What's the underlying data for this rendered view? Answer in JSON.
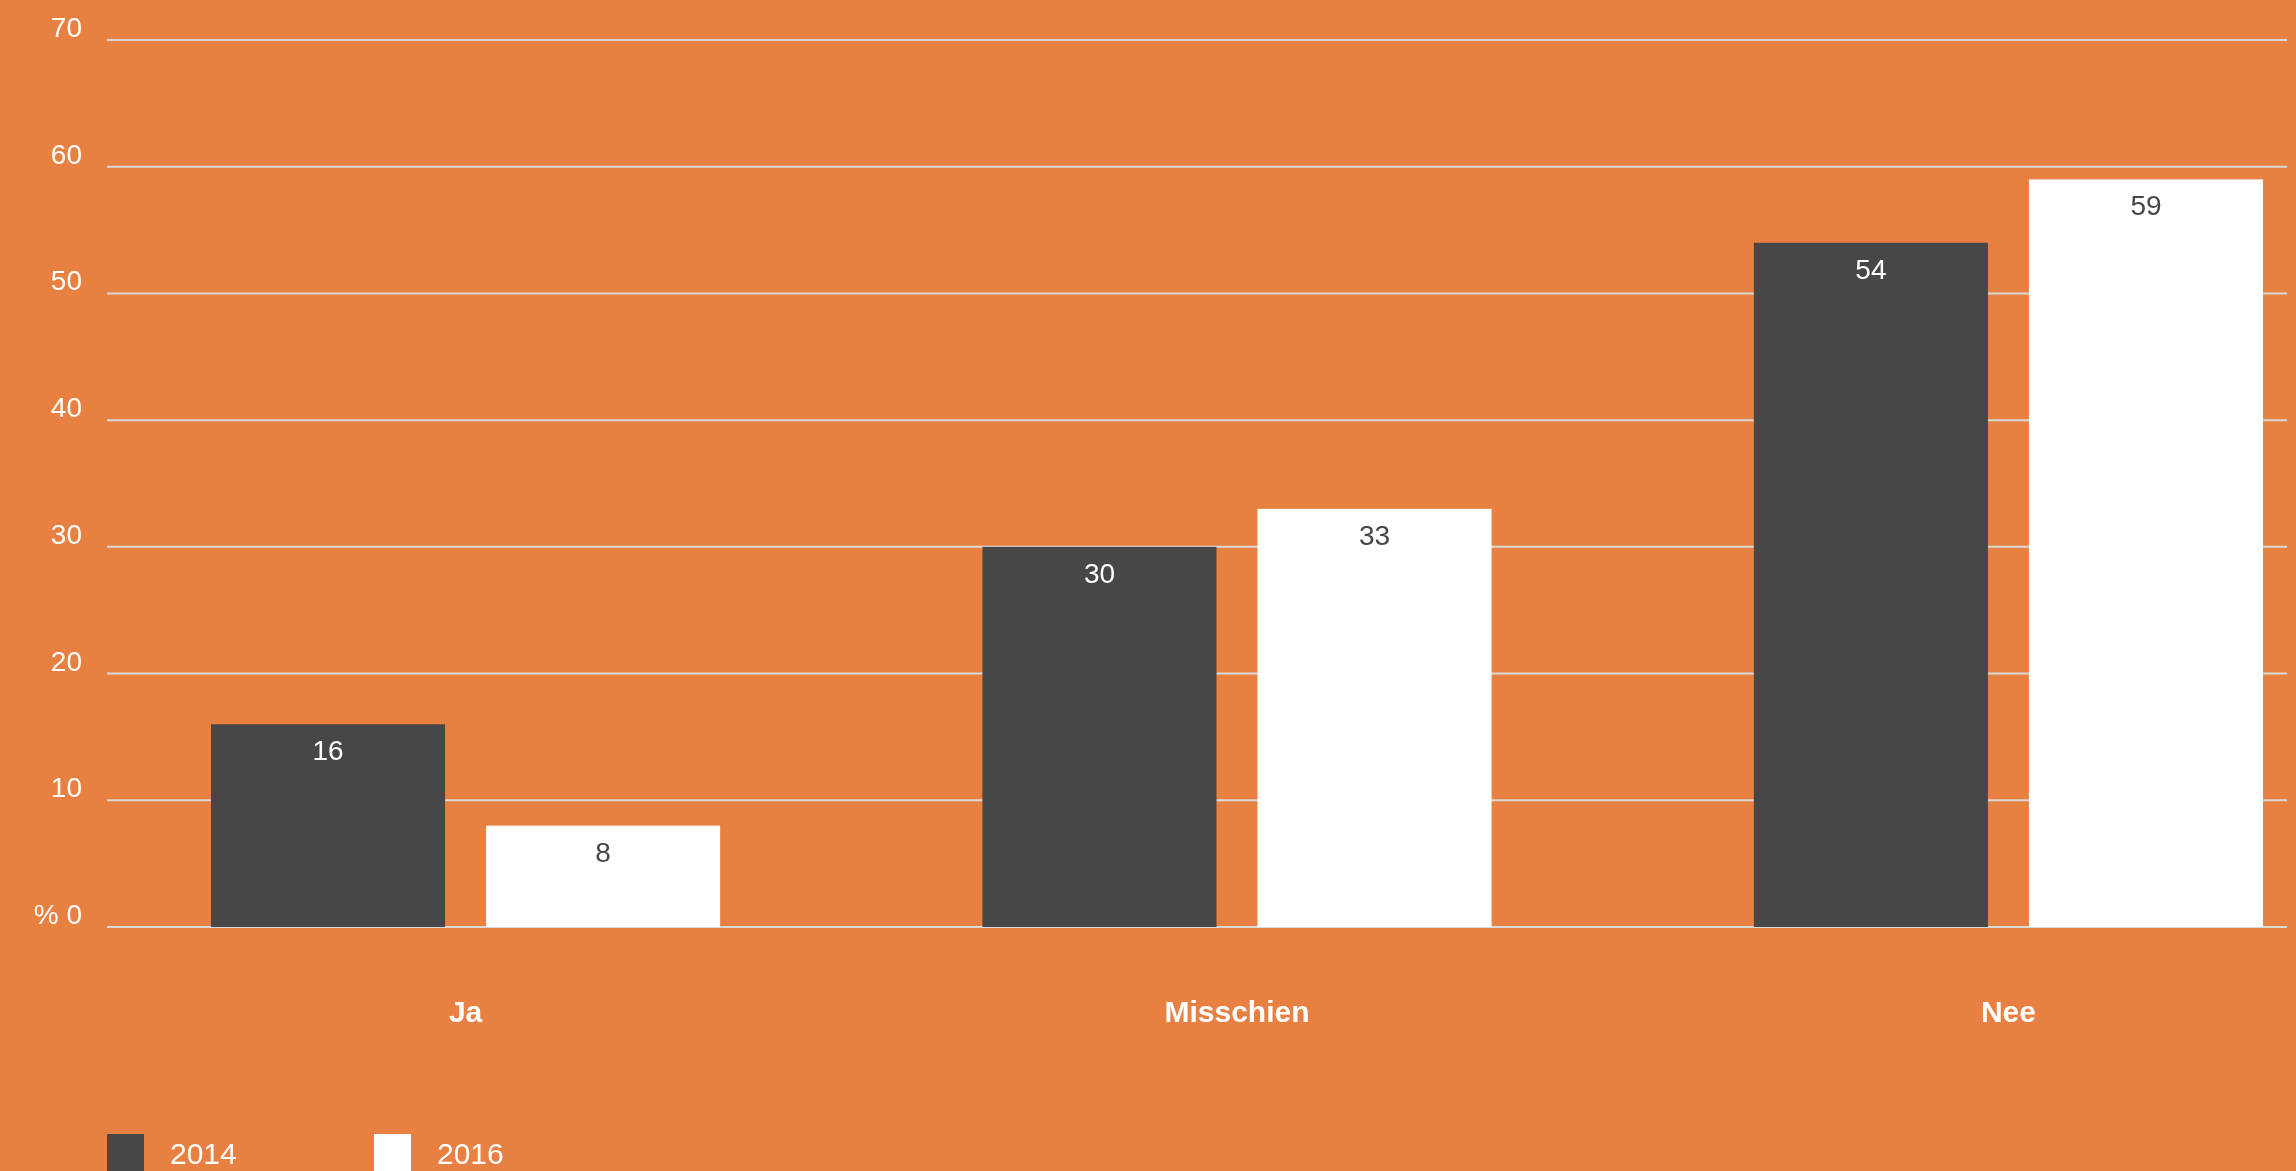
{
  "chart_data": {
    "type": "bar",
    "categories": [
      "Ja",
      "Misschien",
      "Nee"
    ],
    "series": [
      {
        "name": "2014",
        "color": "#474747",
        "values": [
          16,
          30,
          54
        ]
      },
      {
        "name": "2016",
        "color": "#ffffff",
        "values": [
          8,
          33,
          59
        ]
      }
    ],
    "ylim": [
      0,
      70
    ],
    "yticks": [
      {
        "value": 0,
        "label": "% 0"
      },
      10,
      20,
      30,
      40,
      50,
      60,
      70
    ],
    "grid": "y",
    "data_labels": true,
    "legend": "bottom left"
  }
}
